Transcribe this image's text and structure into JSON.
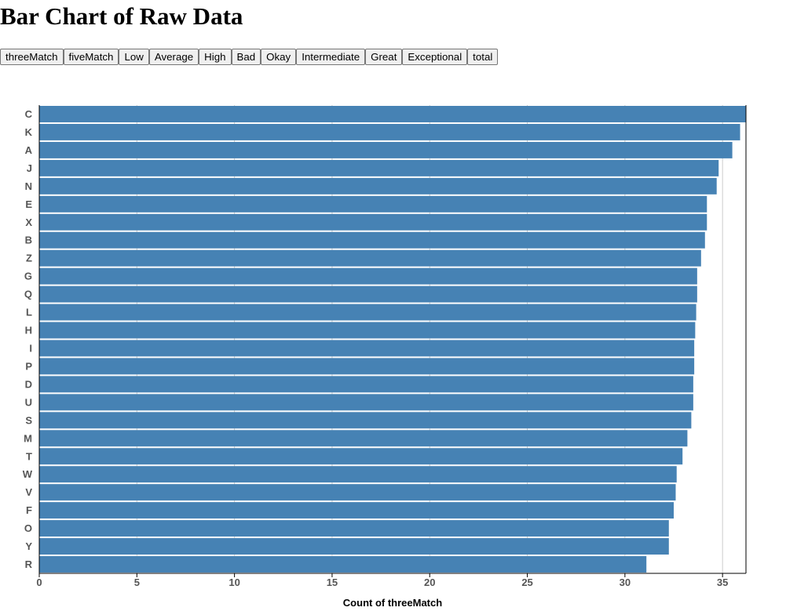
{
  "page": {
    "title": "Bar Chart of Raw Data"
  },
  "buttons": [
    {
      "label": "threeMatch"
    },
    {
      "label": "fiveMatch"
    },
    {
      "label": "Low"
    },
    {
      "label": "Average"
    },
    {
      "label": "High"
    },
    {
      "label": "Bad"
    },
    {
      "label": "Okay"
    },
    {
      "label": "Intermediate"
    },
    {
      "label": "Great"
    },
    {
      "label": "Exceptional"
    },
    {
      "label": "total"
    }
  ],
  "colors": {
    "bar": "#4682b4",
    "grid": "#cccccc",
    "axis": "#000000"
  },
  "chart_data": {
    "type": "bar",
    "orientation": "horizontal",
    "title": "",
    "xlabel": "Count of threeMatch",
    "ylabel": "",
    "xlim": [
      0,
      36.2
    ],
    "xticks": [
      0,
      5,
      10,
      15,
      20,
      25,
      30,
      35
    ],
    "grid": true,
    "categories": [
      "C",
      "K",
      "A",
      "J",
      "N",
      "E",
      "X",
      "B",
      "Z",
      "G",
      "Q",
      "L",
      "H",
      "I",
      "P",
      "D",
      "U",
      "S",
      "M",
      "T",
      "W",
      "V",
      "F",
      "O",
      "Y",
      "R"
    ],
    "values": [
      36.2,
      35.9,
      35.5,
      34.8,
      34.7,
      34.2,
      34.2,
      34.1,
      33.9,
      33.7,
      33.7,
      33.65,
      33.6,
      33.55,
      33.55,
      33.5,
      33.5,
      33.4,
      33.2,
      32.95,
      32.65,
      32.6,
      32.5,
      32.25,
      32.25,
      31.1
    ]
  }
}
